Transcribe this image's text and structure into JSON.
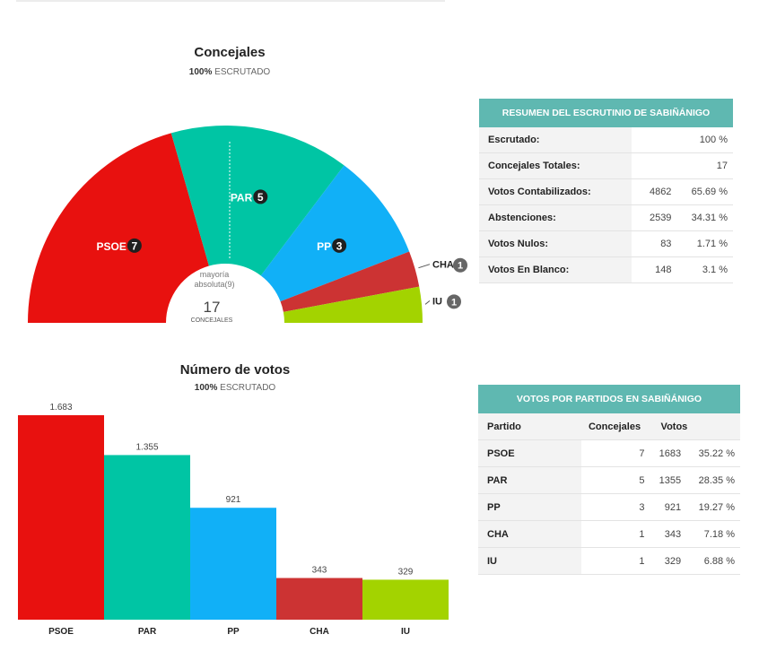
{
  "seats_chart": {
    "title": "Concejales",
    "subtitle_bold": "100%",
    "subtitle_rest": "ESCRUTADO",
    "majority_line1": "mayoría",
    "majority_line2": "absoluta(9)",
    "total": "17",
    "total_label": "CONCEJALES"
  },
  "votes_chart": {
    "title": "Número de votos",
    "subtitle_bold": "100%",
    "subtitle_rest": "ESCRUTADO"
  },
  "colors": {
    "PSOE": "#e8110f",
    "PAR": "#00c5a4",
    "PP": "#11b0f7",
    "CHA": "#cc3333",
    "IU": "#a3d300",
    "header": "#5fb8b1"
  },
  "chart_data": [
    {
      "type": "pie",
      "subtype": "hemicycle",
      "title": "Concejales",
      "categories": [
        "PSOE",
        "PAR",
        "PP",
        "CHA",
        "IU"
      ],
      "values": [
        7,
        5,
        3,
        1,
        1
      ],
      "total": 17,
      "majority": 9
    },
    {
      "type": "bar",
      "title": "Número de votos",
      "categories": [
        "PSOE",
        "PAR",
        "PP",
        "CHA",
        "IU"
      ],
      "values": [
        1683,
        1355,
        921,
        343,
        329
      ],
      "value_labels": [
        "1.683",
        "1.355",
        "921",
        "343",
        "329"
      ],
      "ylim": [
        0,
        1683
      ]
    }
  ],
  "summary": {
    "title": "RESUMEN DEL ESCRUTINIO DE SABIÑÁNIGO",
    "rows": [
      {
        "label": "Escrutado:",
        "v1": "",
        "v2": "100 %"
      },
      {
        "label": "Concejales Totales:",
        "v1": "",
        "v2": "17"
      },
      {
        "label": "Votos Contabilizados:",
        "v1": "4862",
        "v2": "65.69 %"
      },
      {
        "label": "Abstenciones:",
        "v1": "2539",
        "v2": "34.31 %"
      },
      {
        "label": "Votos Nulos:",
        "v1": "83",
        "v2": "1.71 %"
      },
      {
        "label": "Votos En Blanco:",
        "v1": "148",
        "v2": "3.1 %"
      }
    ]
  },
  "parties_table": {
    "title": "VOTOS POR PARTIDOS EN SABIÑÁNIGO",
    "headers": [
      "Partido",
      "Concejales",
      "Votos"
    ],
    "rows": [
      {
        "party": "PSOE",
        "seats": "7",
        "votes": "1683",
        "pct": "35.22 %"
      },
      {
        "party": "PAR",
        "seats": "5",
        "votes": "1355",
        "pct": "28.35 %"
      },
      {
        "party": "PP",
        "seats": "3",
        "votes": "921",
        "pct": "19.27 %"
      },
      {
        "party": "CHA",
        "seats": "1",
        "votes": "343",
        "pct": "7.18 %"
      },
      {
        "party": "IU",
        "seats": "1",
        "votes": "329",
        "pct": "6.88 %"
      }
    ]
  }
}
